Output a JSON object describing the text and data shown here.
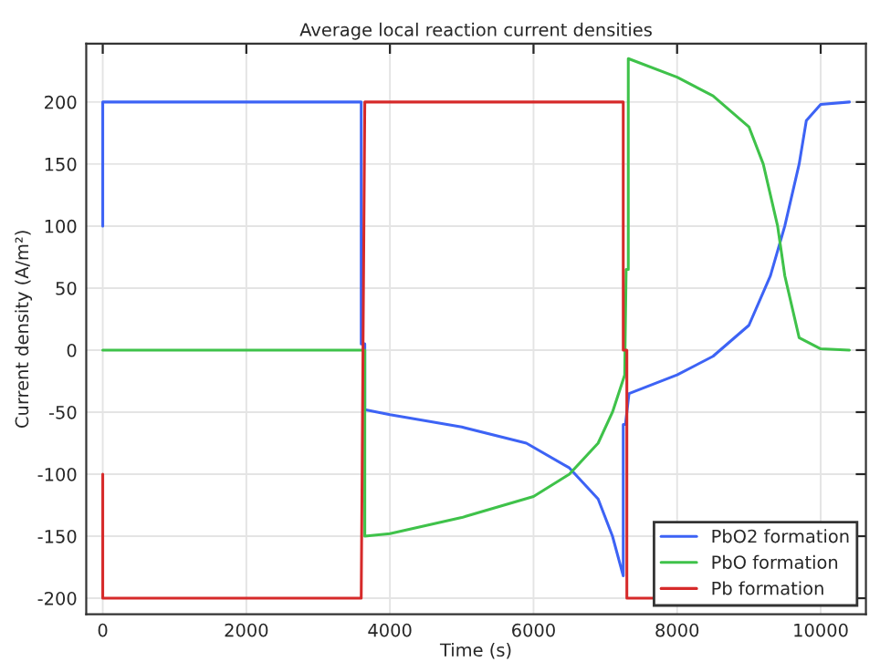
{
  "chart_data": {
    "type": "line",
    "title": "Average local reaction current densities",
    "xlabel": "Time (s)",
    "ylabel": "Current density (A/m²)",
    "xlim": [
      -230,
      10630
    ],
    "ylim": [
      -213,
      247
    ],
    "xticks": [
      0,
      2000,
      4000,
      6000,
      8000,
      10000
    ],
    "yticks": [
      -200,
      -150,
      -100,
      -50,
      0,
      50,
      100,
      150,
      200
    ],
    "grid": true,
    "legend": "bottom right",
    "line_style": "solid",
    "marker": "none",
    "series": [
      {
        "name": "PbO2 formation",
        "color": "#3d63f5",
        "x": [
          0,
          0,
          3600,
          3600,
          3650,
          3650,
          4000,
          5000,
          5900,
          6500,
          6900,
          7100,
          7250,
          7250,
          7280,
          7330,
          8000,
          8500,
          9000,
          9300,
          9500,
          9700,
          9800,
          10000,
          10400
        ],
        "values": [
          100,
          200,
          200,
          5,
          5,
          -48,
          -52,
          -62,
          -75,
          -95,
          -120,
          -150,
          -182,
          -60,
          -60,
          -35,
          -20,
          -5,
          20,
          60,
          100,
          150,
          185,
          198,
          200
        ]
      },
      {
        "name": "PbO formation",
        "color": "#3fc24a",
        "x": [
          0,
          3600,
          3650,
          3650,
          4000,
          5000,
          6000,
          6500,
          6900,
          7100,
          7270,
          7290,
          7320,
          7320,
          8000,
          8500,
          9000,
          9200,
          9400,
          9500,
          9700,
          10000,
          10400
        ],
        "values": [
          0,
          0,
          0,
          -150,
          -148,
          -135,
          -118,
          -100,
          -75,
          -50,
          -20,
          65,
          65,
          235,
          220,
          205,
          180,
          150,
          100,
          60,
          10,
          1,
          0
        ]
      },
      {
        "name": "Pb formation",
        "color": "#d62a2a",
        "x": [
          0,
          0,
          3600,
          3650,
          7250,
          7250,
          7300,
          7300,
          7700
        ],
        "values": [
          -100,
          -200,
          -200,
          200,
          200,
          0,
          0,
          -200,
          -200
        ]
      }
    ]
  }
}
